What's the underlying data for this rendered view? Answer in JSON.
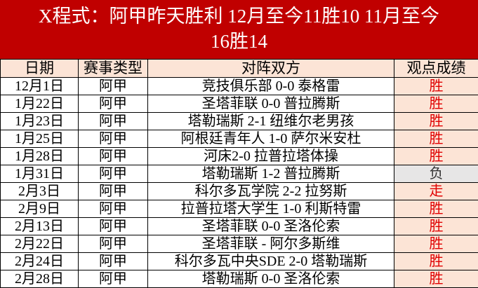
{
  "title": {
    "line1": "X程式：阿甲昨天胜利 12月至今11胜10 11月至今",
    "line2": "16胜14"
  },
  "colors": {
    "title_bg": "#c00000",
    "result_bg": "#fce4d6",
    "loss_bg": "#e7e6e6",
    "win_text": "#e00000"
  },
  "table": {
    "headers": [
      "日期",
      "赛事类型",
      "对阵双方",
      "观点成绩"
    ],
    "rows": [
      {
        "date": "12月1日",
        "type": "阿甲",
        "match": "竞技俱乐部 0-0 泰格雷",
        "result": "胜"
      },
      {
        "date": "1月22日",
        "type": "阿甲",
        "match": "圣塔菲联 0-0 普拉腾斯",
        "result": "胜"
      },
      {
        "date": "1月23日",
        "type": "阿甲",
        "match": "塔勒瑞斯 2-1 纽维尔老男孩",
        "result": "胜"
      },
      {
        "date": "1月25日",
        "type": "阿甲",
        "match": "阿根廷青年人 1-0 萨尔米安杜",
        "result": "胜"
      },
      {
        "date": "1月28日",
        "type": "阿甲",
        "match": "河床2-0 拉普拉塔体操",
        "result": "胜"
      },
      {
        "date": "1月31日",
        "type": "阿甲",
        "match": "塔勒瑞斯 1-2 普拉腾斯",
        "result": "负"
      },
      {
        "date": "2月3日",
        "type": "阿甲",
        "match": "科尔多瓦学院 2-2 拉努斯",
        "result": "走"
      },
      {
        "date": "2月9日",
        "type": "阿甲",
        "match": "拉普拉塔大学生 1-0 利斯特雷",
        "result": "胜"
      },
      {
        "date": "2月13日",
        "type": "阿甲",
        "match": "圣塔菲联 0-0 圣洛伦索",
        "result": "胜"
      },
      {
        "date": "2月22日",
        "type": "阿甲",
        "match": "圣塔菲联 - 阿尔多斯维",
        "result": "胜"
      },
      {
        "date": "2月24日",
        "type": "阿甲",
        "match": "科尔多瓦中央SDE 2-0 塔勒瑞斯",
        "result": "胜"
      },
      {
        "date": "2月28日",
        "type": "阿甲",
        "match": "塔勒瑞斯 0-0 圣洛伦索",
        "result": "胜"
      }
    ]
  }
}
